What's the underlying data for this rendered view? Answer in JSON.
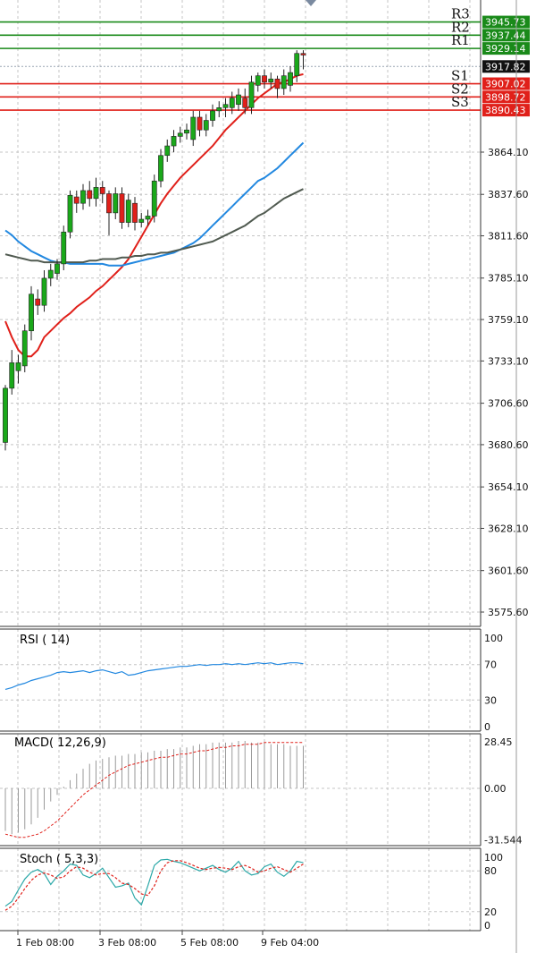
{
  "chart_data": [
    {
      "type": "candlestick",
      "pane": "price",
      "y_ticks": [
        "3864.10",
        "3837.60",
        "3811.60",
        "3785.10",
        "3759.10",
        "3733.10",
        "3706.60",
        "3680.60",
        "3654.10",
        "3628.10",
        "3601.60",
        "3575.60"
      ],
      "ylim": [
        3565,
        3960
      ],
      "grid": true,
      "current_price": "3917.82",
      "pivot_levels": [
        {
          "name": "R3",
          "value": 3945.73,
          "label": "3945.73",
          "color": "#1a8a1a"
        },
        {
          "name": "R2",
          "value": 3937.44,
          "label": "3937.44",
          "color": "#1a8a1a"
        },
        {
          "name": "R1",
          "value": 3929.14,
          "label": "3929.14",
          "color": "#1a8a1a"
        },
        {
          "name": "S1",
          "value": 3907.02,
          "label": "3907.02",
          "color": "#e0201a"
        },
        {
          "name": "S2",
          "value": 3898.72,
          "label": "3898.72",
          "color": "#e0201a"
        },
        {
          "name": "S3",
          "value": 3890.43,
          "label": "3890.43",
          "color": "#e0201a"
        }
      ],
      "candles": [
        [
          3682,
          3716,
          3677,
          3718
        ],
        [
          3716,
          3732,
          3712,
          3740
        ],
        [
          3727,
          3732,
          3719,
          3737
        ],
        [
          3730,
          3752,
          3726,
          3756
        ],
        [
          3752,
          3775,
          3746,
          3780
        ],
        [
          3772,
          3768,
          3762,
          3778
        ],
        [
          3768,
          3785,
          3764,
          3790
        ],
        [
          3785,
          3790,
          3780,
          3794
        ],
        [
          3788,
          3794,
          3784,
          3797
        ],
        [
          3794,
          3814,
          3790,
          3818
        ],
        [
          3814,
          3837,
          3810,
          3840
        ],
        [
          3836,
          3832,
          3826,
          3840
        ],
        [
          3832,
          3840,
          3828,
          3844
        ],
        [
          3840,
          3835,
          3830,
          3846
        ],
        [
          3835,
          3842,
          3830,
          3848
        ],
        [
          3842,
          3838,
          3832,
          3846
        ],
        [
          3838,
          3826,
          3812,
          3840
        ],
        [
          3826,
          3838,
          3822,
          3842
        ],
        [
          3838,
          3820,
          3816,
          3842
        ],
        [
          3820,
          3834,
          3817,
          3838
        ],
        [
          3832,
          3820,
          3815,
          3836
        ],
        [
          3820,
          3822,
          3817,
          3826
        ],
        [
          3822,
          3824,
          3818,
          3828
        ],
        [
          3824,
          3846,
          3820,
          3850
        ],
        [
          3846,
          3862,
          3842,
          3866
        ],
        [
          3862,
          3868,
          3858,
          3872
        ],
        [
          3868,
          3874,
          3864,
          3878
        ],
        [
          3874,
          3876,
          3870,
          3880
        ],
        [
          3876,
          3878,
          3872,
          3882
        ],
        [
          3872,
          3886,
          3868,
          3890
        ],
        [
          3886,
          3878,
          3874,
          3890
        ],
        [
          3878,
          3884,
          3874,
          3888
        ],
        [
          3884,
          3890,
          3880,
          3894
        ],
        [
          3890,
          3892,
          3886,
          3896
        ],
        [
          3892,
          3894,
          3886,
          3898
        ],
        [
          3892,
          3898,
          3888,
          3902
        ],
        [
          3894,
          3900,
          3890,
          3904
        ],
        [
          3898,
          3892,
          3888,
          3904
        ],
        [
          3892,
          3908,
          3888,
          3912
        ],
        [
          3906,
          3912,
          3902,
          3914
        ],
        [
          3912,
          3908,
          3904,
          3916
        ],
        [
          3908,
          3910,
          3904,
          3914
        ],
        [
          3910,
          3904,
          3898,
          3912
        ],
        [
          3904,
          3912,
          3900,
          3916
        ],
        [
          3906,
          3914,
          3902,
          3918
        ],
        [
          3912,
          3926,
          3908,
          3928
        ],
        [
          3926,
          3925,
          3916,
          3928
        ]
      ],
      "moving_averages": [
        {
          "color": "#e0201a",
          "values": [
            3758,
            3748,
            3740,
            3736,
            3736,
            3740,
            3748,
            3752,
            3756,
            3760,
            3763,
            3767,
            3770,
            3773,
            3777,
            3780,
            3784,
            3788,
            3792,
            3797,
            3804,
            3811,
            3818,
            3825,
            3832,
            3838,
            3843,
            3848,
            3852,
            3856,
            3860,
            3864,
            3868,
            3873,
            3878,
            3882,
            3886,
            3890,
            3894,
            3898,
            3901,
            3904,
            3907,
            3908,
            3910,
            3912,
            3913
          ]
        },
        {
          "color": "#2288e0",
          "values": [
            3815,
            3812,
            3808,
            3805,
            3802,
            3800,
            3798,
            3796,
            3795,
            3795,
            3794,
            3794,
            3794,
            3794,
            3794,
            3794,
            3793,
            3793,
            3793,
            3794,
            3795,
            3796,
            3797,
            3798,
            3799,
            3800,
            3801,
            3803,
            3805,
            3807,
            3810,
            3814,
            3818,
            3822,
            3826,
            3830,
            3834,
            3838,
            3842,
            3846,
            3848,
            3851,
            3854,
            3858,
            3862,
            3866,
            3870
          ]
        },
        {
          "color": "#505a50",
          "values": [
            3800,
            3799,
            3798,
            3797,
            3796,
            3796,
            3795,
            3795,
            3795,
            3795,
            3795,
            3795,
            3795,
            3796,
            3796,
            3797,
            3797,
            3797,
            3798,
            3798,
            3799,
            3799,
            3800,
            3800,
            3801,
            3801,
            3802,
            3803,
            3804,
            3805,
            3806,
            3807,
            3808,
            3810,
            3812,
            3814,
            3816,
            3818,
            3821,
            3824,
            3826,
            3829,
            3832,
            3835,
            3837,
            3839,
            3841
          ]
        }
      ]
    },
    {
      "type": "line",
      "pane": "rsi",
      "title": "RSI ( 14)",
      "y_ticks": [
        "100",
        "70",
        "30",
        "0"
      ],
      "ylim": [
        0,
        100
      ],
      "series": [
        {
          "color": "#2288e0",
          "values": [
            42,
            44,
            47,
            49,
            52,
            54,
            56,
            58,
            61,
            62,
            61,
            62,
            63,
            61,
            63,
            64,
            62,
            60,
            62,
            58,
            59,
            61,
            63,
            64,
            65,
            66,
            67,
            68,
            68,
            69,
            70,
            69,
            70,
            70,
            71,
            70,
            71,
            70,
            71,
            72,
            71,
            72,
            70,
            71,
            72,
            72,
            71
          ]
        }
      ]
    },
    {
      "type": "bar",
      "pane": "macd",
      "title": "MACD( 12,26,9)",
      "y_ticks": [
        "28.45",
        "0.00",
        "-31.544"
      ],
      "ylim": [
        -36,
        34
      ],
      "histogram": [
        -26,
        -28,
        -27,
        -25,
        -22,
        -18,
        -13,
        -8,
        -4,
        1,
        5,
        9,
        12,
        15,
        17,
        18,
        19,
        20,
        20,
        21,
        21,
        22,
        22,
        23,
        23,
        24,
        24,
        25,
        25,
        26,
        27,
        27,
        28,
        28,
        28,
        28,
        29,
        29,
        28,
        28,
        28,
        27,
        27,
        27,
        26,
        26,
        26
      ],
      "signal": [
        -28,
        -29,
        -30,
        -30,
        -29,
        -28,
        -26,
        -23,
        -20,
        -16,
        -12,
        -8,
        -4,
        -1,
        2,
        5,
        8,
        10,
        12,
        14,
        15,
        16,
        17,
        18,
        19,
        19,
        20,
        21,
        21,
        22,
        23,
        23,
        24,
        25,
        25,
        26,
        26,
        27,
        27,
        27,
        28,
        28,
        28,
        28,
        28,
        28,
        28
      ]
    },
    {
      "type": "line",
      "pane": "stoch",
      "title": "Stoch ( 5,3,3)",
      "y_ticks": [
        "100",
        "80",
        "20",
        "0"
      ],
      "ylim": [
        0,
        100
      ],
      "series": [
        {
          "color": "#2ba8a8",
          "values": [
            28,
            35,
            52,
            68,
            78,
            82,
            76,
            60,
            72,
            80,
            90,
            88,
            74,
            70,
            76,
            84,
            70,
            56,
            58,
            62,
            40,
            30,
            58,
            88,
            96,
            97,
            94,
            92,
            88,
            84,
            80,
            84,
            88,
            82,
            78,
            84,
            94,
            80,
            74,
            76,
            86,
            90,
            78,
            72,
            80,
            94,
            92
          ]
        },
        {
          "color": "#e0201a",
          "values": [
            22,
            28,
            40,
            54,
            66,
            74,
            77,
            74,
            69,
            71,
            80,
            86,
            84,
            78,
            74,
            76,
            76,
            70,
            62,
            60,
            54,
            46,
            44,
            58,
            80,
            92,
            95,
            95,
            92,
            88,
            84,
            82,
            84,
            85,
            84,
            82,
            86,
            88,
            84,
            78,
            80,
            84,
            86,
            82,
            78,
            84,
            90
          ]
        }
      ]
    }
  ],
  "x_axis": {
    "labels": [
      "1 Feb 08:00",
      "3 Feb 08:00",
      "5 Feb 08:00",
      "9 Feb 04:00"
    ]
  },
  "colors": {
    "bull": "#1aa81a",
    "bear": "#e0201a",
    "grid": "#c4c4c4"
  }
}
